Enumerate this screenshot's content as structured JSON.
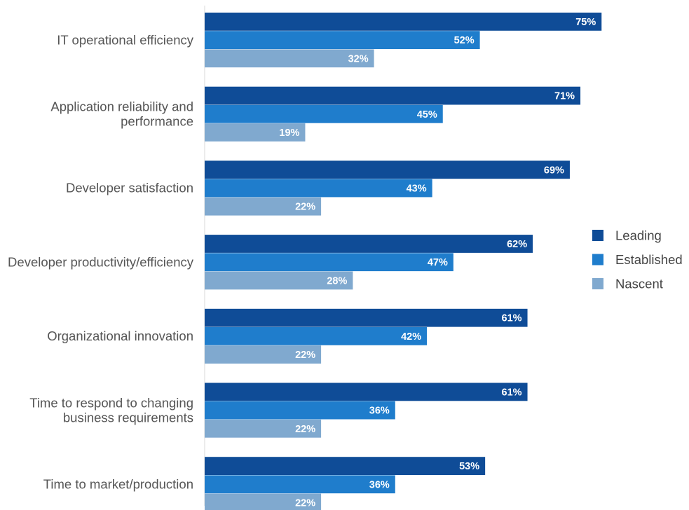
{
  "chart_data": {
    "type": "bar",
    "orientation": "horizontal",
    "categories": [
      [
        "IT operational efficiency"
      ],
      [
        "Application reliability and",
        "performance"
      ],
      [
        "Developer satisfaction"
      ],
      [
        "Developer productivity/efficiency"
      ],
      [
        "Organizational innovation"
      ],
      [
        "Time to respond to changing",
        "business requirements"
      ],
      [
        "Time to market/production"
      ]
    ],
    "series": [
      {
        "name": "Leading",
        "color": "#0f4c97",
        "values": [
          75,
          71,
          69,
          62,
          61,
          61,
          53
        ]
      },
      {
        "name": "Established",
        "color": "#1f7dcc",
        "values": [
          52,
          45,
          43,
          47,
          42,
          36,
          36
        ]
      },
      {
        "name": "Nascent",
        "color": "#80a9cf",
        "values": [
          32,
          19,
          22,
          28,
          22,
          22,
          22
        ]
      }
    ],
    "value_suffix": "%",
    "xlim": [
      0,
      100
    ],
    "title": "",
    "xlabel": "",
    "ylabel": "",
    "grid": false,
    "legend_position": "right"
  }
}
